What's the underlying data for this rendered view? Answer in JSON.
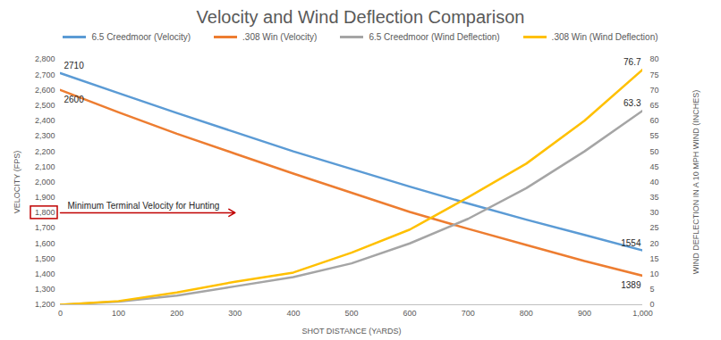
{
  "chart_data": {
    "type": "line",
    "title": "Velocity and Wind Deflection Comparison",
    "xlabel": "SHOT DISTANCE (YARDS)",
    "ylabel": "VELOCITY (FPS)",
    "y2label": "WIND DEFLECTION IN A 10 MPH WIND (INCHES)",
    "x": [
      0,
      100,
      200,
      300,
      400,
      500,
      600,
      700,
      800,
      900,
      1000
    ],
    "xlim": [
      0,
      1000
    ],
    "xticks": [
      0,
      100,
      200,
      300,
      400,
      500,
      600,
      700,
      800,
      900,
      1000
    ],
    "ylim": [
      1200,
      2800
    ],
    "yticks": [
      1200,
      1300,
      1400,
      1500,
      1600,
      1700,
      1800,
      1900,
      2000,
      2100,
      2200,
      2300,
      2400,
      2500,
      2600,
      2700,
      2800
    ],
    "y2lim": [
      0,
      80
    ],
    "y2ticks": [
      0,
      5,
      10,
      15,
      20,
      25,
      30,
      35,
      40,
      45,
      50,
      55,
      60,
      65,
      70,
      75,
      80
    ],
    "grid": false,
    "legend": "top",
    "series": [
      {
        "name": "6.5 Creedmoor (Velocity)",
        "color": "#5b9bd5",
        "values": [
          2710,
          2580,
          2450,
          2325,
          2200,
          2085,
          1970,
          1860,
          1755,
          1655,
          1554
        ],
        "value_labels": [
          "2710",
          null,
          null,
          null,
          null,
          null,
          null,
          null,
          null,
          null,
          "1554"
        ]
      },
      {
        "name": ".308 Win (Velocity)",
        "color": "#ed7d31",
        "values": [
          2600,
          2455,
          2315,
          2185,
          2055,
          1930,
          1805,
          1695,
          1590,
          1485,
          1389
        ],
        "value_labels": [
          "2600",
          null,
          null,
          null,
          null,
          null,
          null,
          null,
          null,
          null,
          "1389"
        ]
      },
      {
        "name": "6.5 Creedmoor (Wind Deflection)",
        "color": "#a5a5a5",
        "axis": "y2",
        "values": [
          0,
          1,
          3,
          6,
          9,
          13.5,
          20,
          28,
          38,
          50,
          63.3
        ],
        "value_labels": [
          null,
          null,
          null,
          null,
          null,
          null,
          null,
          null,
          null,
          null,
          "63.3"
        ]
      },
      {
        "name": ".308 Win (Wind Deflection)",
        "color": "#ffc000",
        "axis": "y2",
        "values": [
          0,
          1.2,
          4,
          7.5,
          10.5,
          17,
          24.5,
          35,
          46,
          60,
          76.7
        ],
        "value_labels": [
          null,
          null,
          null,
          null,
          null,
          null,
          null,
          null,
          null,
          null,
          "76.7"
        ]
      }
    ],
    "annotations": [
      {
        "text": "Minimum Terminal Velocity for Hunting",
        "x": [
          0,
          300
        ],
        "y": 1800,
        "color": "#c00000"
      }
    ]
  }
}
